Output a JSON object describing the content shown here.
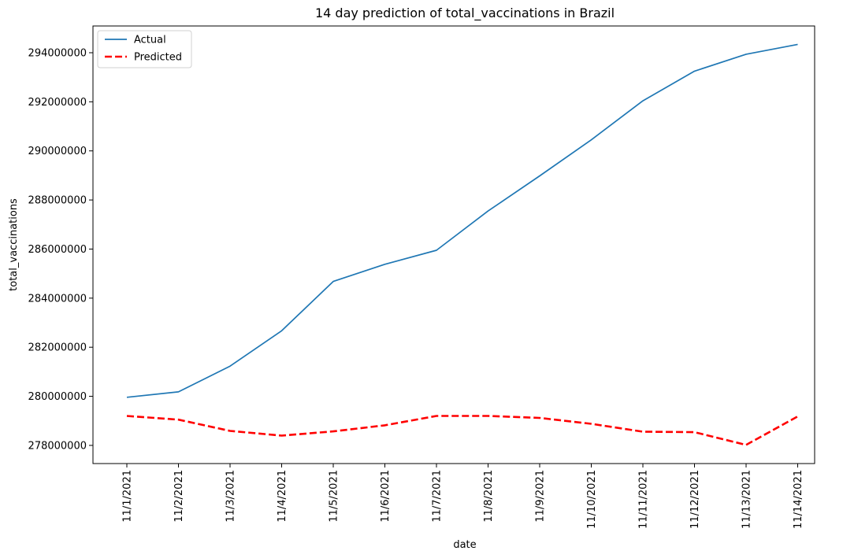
{
  "chart_data": {
    "type": "line",
    "title": "14 day prediction of total_vaccinations in Brazil",
    "xlabel": "date",
    "ylabel": "total_vaccinations",
    "categories": [
      "11/1/2021",
      "11/2/2021",
      "11/3/2021",
      "11/4/2021",
      "11/5/2021",
      "11/6/2021",
      "11/7/2021",
      "11/8/2021",
      "11/9/2021",
      "11/10/2021",
      "11/11/2021",
      "11/12/2021",
      "11/13/2021",
      "11/14/2021"
    ],
    "series": [
      {
        "name": "Actual",
        "color": "#1f77b4",
        "style": "solid",
        "values": [
          279960000,
          280180000,
          281230000,
          282670000,
          284680000,
          285380000,
          285950000,
          287550000,
          288980000,
          290450000,
          292040000,
          293250000,
          293940000,
          294340000
        ]
      },
      {
        "name": "Predicted",
        "color": "#ff0000",
        "style": "dashed",
        "values": [
          279200000,
          279050000,
          278590000,
          278400000,
          278570000,
          278820000,
          279200000,
          279200000,
          279120000,
          278880000,
          278560000,
          278540000,
          278020000,
          279180000
        ]
      }
    ],
    "yticks": [
      278000000,
      280000000,
      282000000,
      284000000,
      286000000,
      288000000,
      290000000,
      292000000,
      294000000
    ],
    "ylim": [
      277260000,
      295090000
    ],
    "grid": false,
    "legend": "top-left"
  }
}
